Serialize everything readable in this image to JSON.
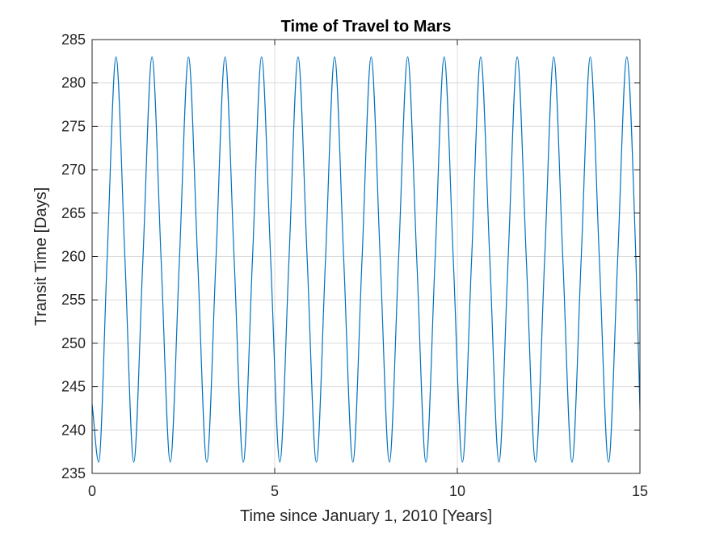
{
  "chart_data": {
    "type": "line",
    "title": "Time of Travel to Mars",
    "xlabel": "Time since January 1, 2010 [Years]",
    "ylabel": "Transit Time [Days]",
    "xlim": [
      0,
      15
    ],
    "ylim": [
      235,
      285
    ],
    "xticks": [
      0,
      5,
      10,
      15
    ],
    "yticks": [
      235,
      240,
      245,
      250,
      255,
      260,
      265,
      270,
      275,
      280,
      285
    ],
    "grid": true,
    "series": [
      {
        "color": "#0072BD",
        "x": [
          0,
          0.18,
          0.41,
          0.655,
          0.9,
          1.14,
          1.39,
          1.64,
          1.89,
          2.14,
          2.39,
          2.64,
          2.89,
          3.14,
          3.39,
          3.64,
          3.89,
          4.14,
          4.39,
          4.64,
          4.89,
          5.14,
          5.39,
          5.64,
          5.89,
          6.14,
          6.39,
          6.64,
          6.89,
          7.14,
          7.39,
          7.64,
          7.89,
          8.14,
          8.39,
          8.64,
          8.89,
          9.14,
          9.39,
          9.64,
          9.89,
          10.14,
          10.39,
          10.64,
          10.89,
          11.14,
          11.39,
          11.64,
          11.89,
          12.14,
          12.39,
          12.64,
          12.89,
          13.14,
          13.39,
          13.64,
          13.89,
          14.14,
          14.39,
          14.64,
          14.89,
          15
        ],
        "y": [
          243,
          236.3,
          259.6,
          283,
          259.6,
          236.3,
          259.6,
          283,
          259.6,
          236.3,
          259.6,
          283,
          259.6,
          236.3,
          259.6,
          283,
          259.6,
          236.3,
          259.6,
          283,
          259.6,
          236.3,
          259.6,
          283,
          259.6,
          236.3,
          259.6,
          283,
          259.6,
          236.3,
          259.6,
          283,
          259.6,
          236.3,
          259.6,
          283,
          259.6,
          236.3,
          259.6,
          283,
          259.6,
          236.3,
          259.6,
          283,
          259.6,
          236.3,
          259.6,
          283,
          259.6,
          236.3,
          259.6,
          283,
          259.6,
          236.3,
          259.6,
          283,
          259.6,
          236.3,
          259.6,
          283,
          259.6,
          242.3
        ]
      }
    ]
  }
}
